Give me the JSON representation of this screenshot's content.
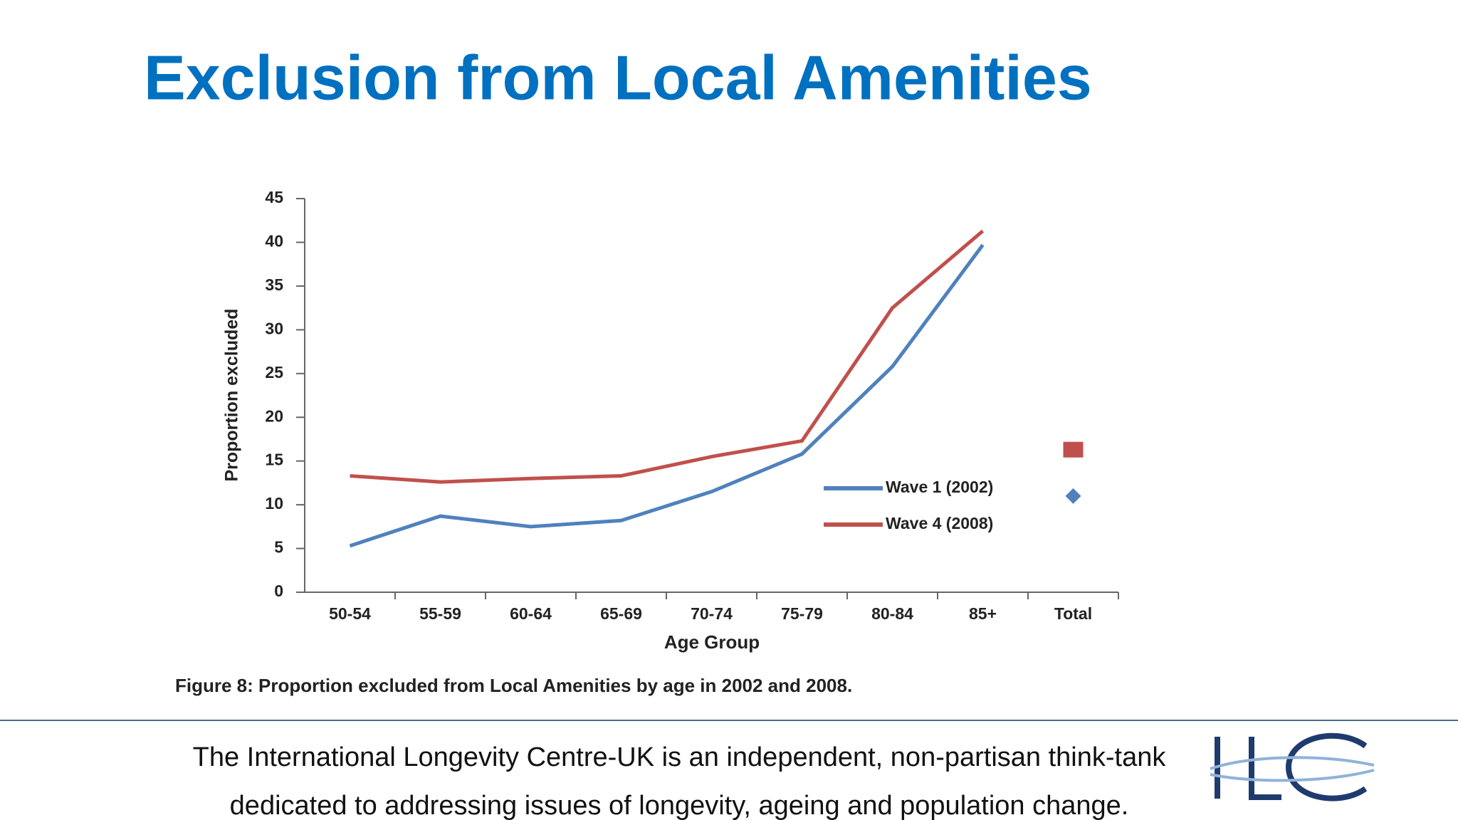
{
  "title": "Exclusion from Local Amenities",
  "chart_data": {
    "type": "line",
    "caption": "Figure 8: Proportion excluded from Local Amenities by age in 2002 and 2008.",
    "x_label": "Age Group",
    "y_label": "Proportion excluded",
    "categories": [
      "50-54",
      "55-59",
      "60-64",
      "65-69",
      "70-74",
      "75-79",
      "80-84",
      "85+",
      "Total"
    ],
    "series": [
      {
        "name": "Wave 1 (2002)",
        "color": "#4f81bd",
        "values": [
          5.3,
          8.7,
          7.5,
          8.2,
          11.5,
          15.8,
          25.8,
          39.7,
          11.0
        ]
      },
      {
        "name": "Wave 4 (2008)",
        "color": "#c0504d",
        "values": [
          13.3,
          12.6,
          13.0,
          13.3,
          15.5,
          17.3,
          32.5,
          41.3,
          16.3
        ]
      }
    ],
    "ylim": [
      0,
      45
    ],
    "yticks": [
      0,
      5,
      10,
      15,
      20,
      25,
      30,
      35,
      40,
      45
    ],
    "legend": "right"
  },
  "footer": [
    "The International Longevity Centre-UK is an independent, non-partisan think-tank",
    "dedicated to addressing issues of longevity, ageing and population change."
  ]
}
